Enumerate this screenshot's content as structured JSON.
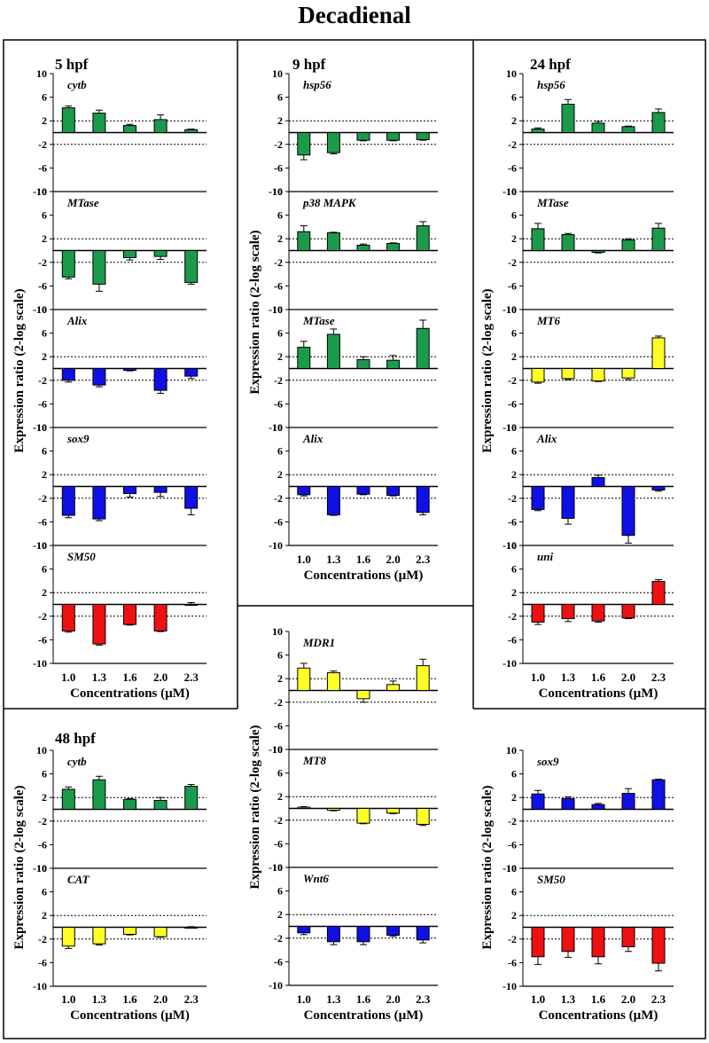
{
  "title": "Decadienal",
  "ylabel": "Expression ratio (2-log scale)",
  "xlabel": "Concentrations (µM)",
  "categories": [
    "1.0",
    "1.3",
    "1.6",
    "2.0",
    "2.3"
  ],
  "yticks": [
    "10",
    "6",
    "2",
    "-2",
    "-6",
    "-10"
  ],
  "colors": {
    "green": "#1a9a4a",
    "blue": "#1010e6",
    "red": "#ee1111",
    "yellow": "#ffff26"
  },
  "chart_data": [
    {
      "type": "bar",
      "stage": "5 hpf",
      "ylim": [
        -10,
        10
      ],
      "reference_lines": [
        2,
        -2
      ],
      "categories": [
        "1.0",
        "1.3",
        "1.6",
        "2.0",
        "2.3"
      ],
      "series": [
        {
          "name": "cytb",
          "color": "green",
          "values": [
            4.2,
            3.3,
            1.2,
            2.2,
            0.5
          ],
          "errors": [
            0.3,
            0.5,
            0.2,
            0.8,
            0.1
          ]
        },
        {
          "name": "MTase",
          "color": "green",
          "values": [
            -4.5,
            -5.7,
            -1.2,
            -1.0,
            -5.4
          ],
          "errors": [
            0.3,
            1.2,
            0.4,
            0.5,
            0.3
          ]
        },
        {
          "name": "Alix",
          "color": "blue",
          "values": [
            -2.0,
            -2.8,
            -0.3,
            -3.7,
            -1.3
          ],
          "errors": [
            0.3,
            0.3,
            0.1,
            0.5,
            0.4
          ]
        },
        {
          "name": "sox9",
          "color": "blue",
          "values": [
            -4.9,
            -5.5,
            -1.2,
            -1.0,
            -3.7
          ],
          "errors": [
            0.4,
            0.3,
            0.6,
            0.7,
            1.1
          ]
        },
        {
          "name": "SM50",
          "color": "red",
          "values": [
            -4.5,
            -6.7,
            -3.4,
            -4.5,
            0.0
          ],
          "errors": [
            0.2,
            0.2,
            0.1,
            0.1,
            0.3
          ]
        }
      ]
    },
    {
      "type": "bar",
      "stage": "9 hpf",
      "ylim": [
        -10,
        10
      ],
      "reference_lines": [
        2,
        -2
      ],
      "categories": [
        "1.0",
        "1.3",
        "1.6",
        "2.0",
        "2.3"
      ],
      "series": [
        {
          "name": "hsp56",
          "color": "green",
          "values": [
            -3.8,
            -3.4,
            -1.3,
            -1.3,
            -1.2
          ],
          "errors": [
            0.8,
            0.2,
            0.1,
            0.1,
            0.1
          ]
        },
        {
          "name": "p38 MAPK",
          "color": "green",
          "values": [
            3.2,
            3.0,
            0.9,
            1.2,
            4.2
          ],
          "errors": [
            1.0,
            0.1,
            0.2,
            0.1,
            0.7
          ]
        },
        {
          "name": "MTase",
          "color": "green",
          "values": [
            3.6,
            5.8,
            1.5,
            1.4,
            6.8
          ],
          "errors": [
            1.0,
            0.9,
            0.5,
            0.8,
            1.4
          ]
        },
        {
          "name": "Alix",
          "color": "blue",
          "values": [
            -1.4,
            -4.8,
            -1.3,
            -1.5,
            -4.4
          ],
          "errors": [
            0.2,
            0.1,
            0.1,
            0.1,
            0.4
          ]
        }
      ]
    },
    {
      "type": "bar",
      "stage": "24 hpf",
      "ylim": [
        -10,
        10
      ],
      "reference_lines": [
        2,
        -2
      ],
      "categories": [
        "1.0",
        "1.3",
        "1.6",
        "2.0",
        "2.3"
      ],
      "series": [
        {
          "name": "hsp56",
          "color": "green",
          "values": [
            0.6,
            4.8,
            1.6,
            1.0,
            3.4
          ],
          "errors": [
            0.2,
            0.8,
            0.3,
            0.1,
            0.6
          ]
        },
        {
          "name": "MTase",
          "color": "green",
          "values": [
            3.7,
            2.7,
            -0.3,
            1.8,
            3.8
          ],
          "errors": [
            0.9,
            0.2,
            0.1,
            0.2,
            0.8
          ]
        },
        {
          "name": "MT6",
          "color": "yellow",
          "values": [
            -2.3,
            -1.7,
            -2.1,
            -1.6,
            5.2
          ],
          "errors": [
            0.2,
            0.2,
            0.1,
            0.3,
            0.3
          ]
        },
        {
          "name": "Alix",
          "color": "blue",
          "values": [
            -3.9,
            -5.4,
            1.5,
            -8.3,
            -0.6
          ],
          "errors": [
            0.2,
            1.0,
            0.4,
            1.3,
            0.2
          ]
        },
        {
          "name": "uni",
          "color": "red",
          "values": [
            -3.0,
            -2.4,
            -2.8,
            -2.3,
            3.9
          ],
          "errors": [
            0.4,
            0.5,
            0.2,
            0.1,
            0.3
          ]
        }
      ]
    },
    {
      "type": "bar",
      "stage": "48 hpf",
      "ylim": [
        -10,
        10
      ],
      "reference_lines": [
        2,
        -2
      ],
      "categories": [
        "1.0",
        "1.3",
        "1.6",
        "2.0",
        "2.3"
      ],
      "series": [
        {
          "name": "cytb",
          "color": "green",
          "values": [
            3.4,
            5.0,
            1.7,
            1.5,
            3.9
          ],
          "errors": [
            0.4,
            0.6,
            0.1,
            0.5,
            0.3
          ]
        },
        {
          "name": "CAT",
          "color": "yellow",
          "values": [
            -3.2,
            -2.8,
            -1.2,
            -1.6,
            0.0
          ],
          "errors": [
            0.4,
            0.2,
            0.1,
            0.1,
            0.1
          ]
        },
        {
          "name": "MDR1",
          "color": "yellow",
          "values": [
            3.8,
            3.0,
            -1.4,
            1.0,
            4.2
          ],
          "errors": [
            0.8,
            0.3,
            0.6,
            0.6,
            1.1
          ]
        },
        {
          "name": "MT8",
          "color": "yellow",
          "values": [
            0.2,
            -0.3,
            -2.5,
            -0.8,
            -2.7
          ],
          "errors": [
            0.1,
            0.1,
            0.1,
            0.1,
            0.2
          ]
        },
        {
          "name": "Wnt6",
          "color": "blue",
          "values": [
            -1.1,
            -2.6,
            -2.6,
            -1.5,
            -2.3
          ],
          "errors": [
            0.3,
            0.5,
            0.5,
            0.2,
            0.5
          ]
        },
        {
          "name": "sox9",
          "color": "blue",
          "values": [
            2.6,
            1.8,
            0.8,
            2.7,
            5.0
          ],
          "errors": [
            0.6,
            0.3,
            0.2,
            0.8,
            0.1
          ]
        },
        {
          "name": "SM50",
          "color": "red",
          "values": [
            -5.0,
            -4.1,
            -5.0,
            -3.3,
            -6.1
          ],
          "errors": [
            1.3,
            1.0,
            1.2,
            0.8,
            1.3
          ]
        }
      ]
    }
  ]
}
